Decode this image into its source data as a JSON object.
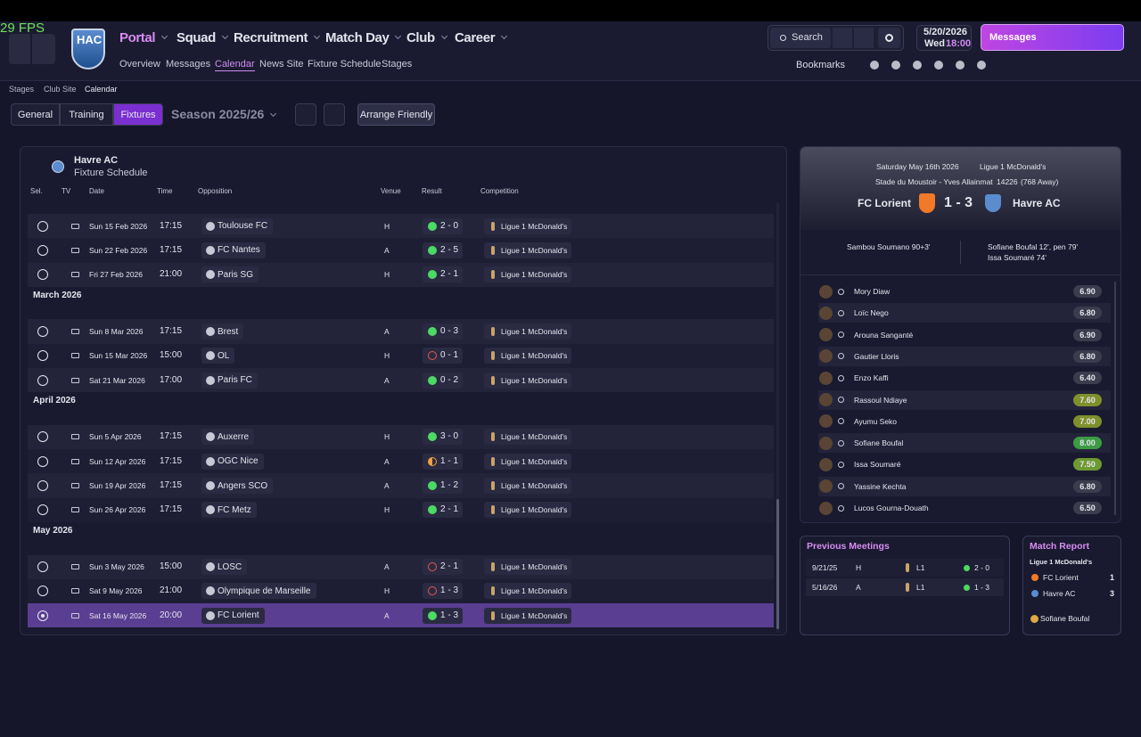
{
  "fps": "29 FPS",
  "header": {
    "club_badge": "HAC",
    "nav": [
      "Portal",
      "Squad",
      "Recruitment",
      "Match Day",
      "Club",
      "Career"
    ],
    "subnav": [
      "Overview",
      "Messages",
      "Calendar",
      "News Site",
      "Fixture Schedule",
      "Stages"
    ],
    "search": "Search",
    "date": "5/20/2026",
    "weekday": "Wed",
    "time": "18:00",
    "messages_button": "Messages",
    "bookmarks": "Bookmarks"
  },
  "breadcrumb": [
    "Stages",
    "Club Site",
    "Calendar"
  ],
  "tabs": [
    "General",
    "Training",
    "Fixtures"
  ],
  "season": "Season 2025/26",
  "arrange_friendly": "Arrange Friendly",
  "schedule": {
    "club": "Havre AC",
    "title": "Fixture Schedule",
    "columns": [
      "Sel.",
      "TV",
      "Date",
      "Time",
      "Opposition",
      "Venue",
      "Result",
      "Competition"
    ],
    "groups": [
      {
        "rows": [
          {
            "date": "Sun 15 Feb 2026",
            "time": "17:15",
            "opponent": "Toulouse FC",
            "venue": "H",
            "result": "2 - 0",
            "result_color": "#4cd964",
            "result_fill": "full",
            "competition": "Ligue 1 McDonald's"
          },
          {
            "date": "Sun 22 Feb 2026",
            "time": "17:15",
            "opponent": "FC Nantes",
            "venue": "A",
            "result": "2 - 5",
            "result_color": "#4cd964",
            "result_fill": "full",
            "competition": "Ligue 1 McDonald's"
          },
          {
            "date": "Fri 27 Feb 2026",
            "time": "21:00",
            "opponent": "Paris SG",
            "venue": "H",
            "result": "2 - 1",
            "result_color": "#4cd964",
            "result_fill": "full",
            "competition": "Ligue 1 McDonald's"
          }
        ]
      },
      {
        "heading": "March 2026",
        "rows": [
          {
            "date": "Sun 8 Mar 2026",
            "time": "17:15",
            "opponent": "Brest",
            "venue": "A",
            "result": "0 - 3",
            "result_color": "#4cd964",
            "result_fill": "full",
            "competition": "Ligue 1 McDonald's"
          },
          {
            "date": "Sun 15 Mar 2026",
            "time": "15:00",
            "opponent": "OL",
            "venue": "H",
            "result": "0 - 1",
            "result_color": "#e8574a",
            "result_fill": "none",
            "competition": "Ligue 1 McDonald's"
          },
          {
            "date": "Sat 21 Mar 2026",
            "time": "17:00",
            "opponent": "Paris FC",
            "venue": "A",
            "result": "0 - 2",
            "result_color": "#4cd964",
            "result_fill": "full",
            "competition": "Ligue 1 McDonald's"
          }
        ]
      },
      {
        "heading": "April 2026",
        "rows": [
          {
            "date": "Sun 5 Apr 2026",
            "time": "17:15",
            "opponent": "Auxerre",
            "venue": "H",
            "result": "3 - 0",
            "result_color": "#4cd964",
            "result_fill": "full",
            "competition": "Ligue 1 McDonald's"
          },
          {
            "date": "Sun 12 Apr 2026",
            "time": "17:15",
            "opponent": "OGC Nice",
            "venue": "A",
            "result": "1 - 1",
            "result_color": "#f0a040",
            "result_fill": "half",
            "competition": "Ligue 1 McDonald's"
          },
          {
            "date": "Sun 19 Apr 2026",
            "time": "17:15",
            "opponent": "Angers SCO",
            "venue": "A",
            "result": "1 - 2",
            "result_color": "#4cd964",
            "result_fill": "full",
            "competition": "Ligue 1 McDonald's"
          },
          {
            "date": "Sun 26 Apr 2026",
            "time": "17:15",
            "opponent": "FC Metz",
            "venue": "H",
            "result": "2 - 1",
            "result_color": "#4cd964",
            "result_fill": "full",
            "competition": "Ligue 1 McDonald's"
          }
        ]
      },
      {
        "heading": "May 2026",
        "rows": [
          {
            "date": "Sun 3 May 2026",
            "time": "15:00",
            "opponent": "LOSC",
            "venue": "A",
            "result": "2 - 1",
            "result_color": "#e8574a",
            "result_fill": "none",
            "competition": "Ligue 1 McDonald's"
          },
          {
            "date": "Sat 9 May 2026",
            "time": "21:00",
            "opponent": "Olympique de Marseille",
            "venue": "H",
            "result": "1 - 3",
            "result_color": "#e8574a",
            "result_fill": "none",
            "competition": "Ligue 1 McDonald's"
          },
          {
            "date": "Sat 16 May 2026",
            "time": "20:00",
            "opponent": "FC Lorient",
            "venue": "A",
            "result": "1 - 3",
            "result_color": "#4cd964",
            "result_fill": "full",
            "competition": "Ligue 1 McDonald's",
            "selected": true
          }
        ]
      }
    ]
  },
  "match": {
    "date": "Saturday May 16th 2026",
    "competition": "Ligue 1 McDonald's",
    "stadium": "Stade du Moustoir - Yves Allainmat",
    "attendance": 14226,
    "away_fans": "(768 Away)",
    "home": "FC Lorient",
    "score": "1 - 3",
    "away": "Havre AC",
    "home_scorers": [
      "Sambou Soumano 90+3'"
    ],
    "away_scorers": [
      "Sofiane Boufal 12', pen 79'",
      "Issa Soumaré 74'"
    ],
    "players": [
      {
        "name": "Mory Diaw",
        "rating": "6.90",
        "color": "#3b3c4c"
      },
      {
        "name": "Loïc Nego",
        "rating": "6.80",
        "color": "#3b3c4c"
      },
      {
        "name": "Arouna Sanganté",
        "rating": "6.90",
        "color": "#3b3c4c"
      },
      {
        "name": "Gautier Lloris",
        "rating": "6.80",
        "color": "#3b3c4c"
      },
      {
        "name": "Enzo Kaffi",
        "rating": "6.40",
        "color": "#3b3c4c"
      },
      {
        "name": "Rassoul Ndiaye",
        "rating": "7.60",
        "color": "#7f8f2c"
      },
      {
        "name": "Ayumu Seko",
        "rating": "7.00",
        "color": "#7f8f2c"
      },
      {
        "name": "Sofiane Boufal",
        "rating": "8.00",
        "color": "#3c9b44"
      },
      {
        "name": "Issa Soumaré",
        "rating": "7.50",
        "color": "#6e9a32"
      },
      {
        "name": "Yassine Kechta",
        "rating": "6.80",
        "color": "#3b3c4c"
      },
      {
        "name": "Lucos Gourna-Douath",
        "rating": "6.50",
        "color": "#3b3c4c"
      }
    ]
  },
  "previous_meetings": {
    "title": "Previous Meetings",
    "rows": [
      {
        "date": "9/21/25",
        "venue": "H",
        "competition": "L1",
        "result": "2 - 0"
      },
      {
        "date": "5/16/26",
        "venue": "A",
        "competition": "L1",
        "result": "1 - 3"
      }
    ]
  },
  "match_report": {
    "title": "Match Report",
    "competition": "Ligue 1 McDonald's",
    "teams": [
      {
        "name": "FC Lorient",
        "goals": 1
      },
      {
        "name": "Havre AC",
        "goals": 3
      }
    ],
    "player_of_match": "Sofiane Boufal"
  }
}
